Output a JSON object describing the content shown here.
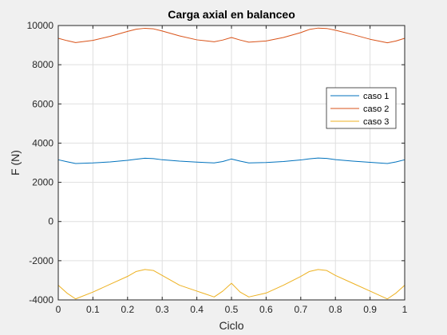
{
  "chart_data": {
    "type": "line",
    "title": "Carga axial en balanceo",
    "xlabel": "Ciclo",
    "ylabel": "F (N)",
    "xlim": [
      0,
      1
    ],
    "ylim": [
      -4000,
      10000
    ],
    "xticks": [
      0,
      0.1,
      0.2,
      0.3,
      0.4,
      0.5,
      0.6,
      0.7,
      0.8,
      0.9,
      1
    ],
    "xtick_labels": [
      "0",
      "0.1",
      "0.2",
      "0.3",
      "0.4",
      "0.5",
      "0.6",
      "0.7",
      "0.8",
      "0.9",
      "1"
    ],
    "yticks": [
      -4000,
      -2000,
      0,
      2000,
      4000,
      6000,
      8000,
      10000
    ],
    "ytick_labels": [
      "-4000",
      "-2000",
      "0",
      "2000",
      "4000",
      "6000",
      "8000",
      "10000"
    ],
    "grid": true,
    "legend_position": "top-right",
    "series": [
      {
        "name": "caso 1",
        "color": "#0072BD",
        "x": [
          0,
          0.025,
          0.05,
          0.1,
          0.15,
          0.2,
          0.225,
          0.25,
          0.275,
          0.3,
          0.35,
          0.4,
          0.45,
          0.475,
          0.5,
          0.525,
          0.55,
          0.6,
          0.65,
          0.7,
          0.725,
          0.75,
          0.775,
          0.8,
          0.85,
          0.9,
          0.95,
          0.975,
          1
        ],
        "y": [
          3150,
          3050,
          2960,
          2990,
          3040,
          3120,
          3180,
          3230,
          3210,
          3150,
          3080,
          3030,
          2990,
          3060,
          3190,
          3080,
          2990,
          3010,
          3060,
          3140,
          3200,
          3240,
          3220,
          3160,
          3080,
          3020,
          2960,
          3040,
          3150
        ]
      },
      {
        "name": "caso 2",
        "color": "#D95319",
        "x": [
          0,
          0.025,
          0.05,
          0.1,
          0.15,
          0.2,
          0.225,
          0.25,
          0.275,
          0.3,
          0.35,
          0.4,
          0.45,
          0.475,
          0.5,
          0.525,
          0.55,
          0.6,
          0.65,
          0.7,
          0.725,
          0.75,
          0.775,
          0.8,
          0.85,
          0.9,
          0.95,
          0.975,
          1
        ],
        "y": [
          9350,
          9230,
          9130,
          9240,
          9450,
          9700,
          9810,
          9860,
          9830,
          9720,
          9470,
          9270,
          9170,
          9260,
          9390,
          9260,
          9150,
          9210,
          9390,
          9640,
          9800,
          9870,
          9850,
          9760,
          9540,
          9300,
          9120,
          9210,
          9350
        ]
      },
      {
        "name": "caso 3",
        "color": "#EDB120",
        "x": [
          0,
          0.025,
          0.05,
          0.1,
          0.15,
          0.2,
          0.225,
          0.25,
          0.275,
          0.3,
          0.35,
          0.4,
          0.45,
          0.475,
          0.5,
          0.525,
          0.55,
          0.6,
          0.65,
          0.7,
          0.725,
          0.75,
          0.775,
          0.8,
          0.85,
          0.9,
          0.95,
          0.975,
          1
        ],
        "y": [
          -3250,
          -3650,
          -3950,
          -3600,
          -3200,
          -2800,
          -2550,
          -2450,
          -2500,
          -2750,
          -3250,
          -3550,
          -3850,
          -3550,
          -3150,
          -3600,
          -3850,
          -3650,
          -3250,
          -2800,
          -2550,
          -2450,
          -2500,
          -2750,
          -3150,
          -3550,
          -3950,
          -3650,
          -3250
        ]
      }
    ]
  }
}
